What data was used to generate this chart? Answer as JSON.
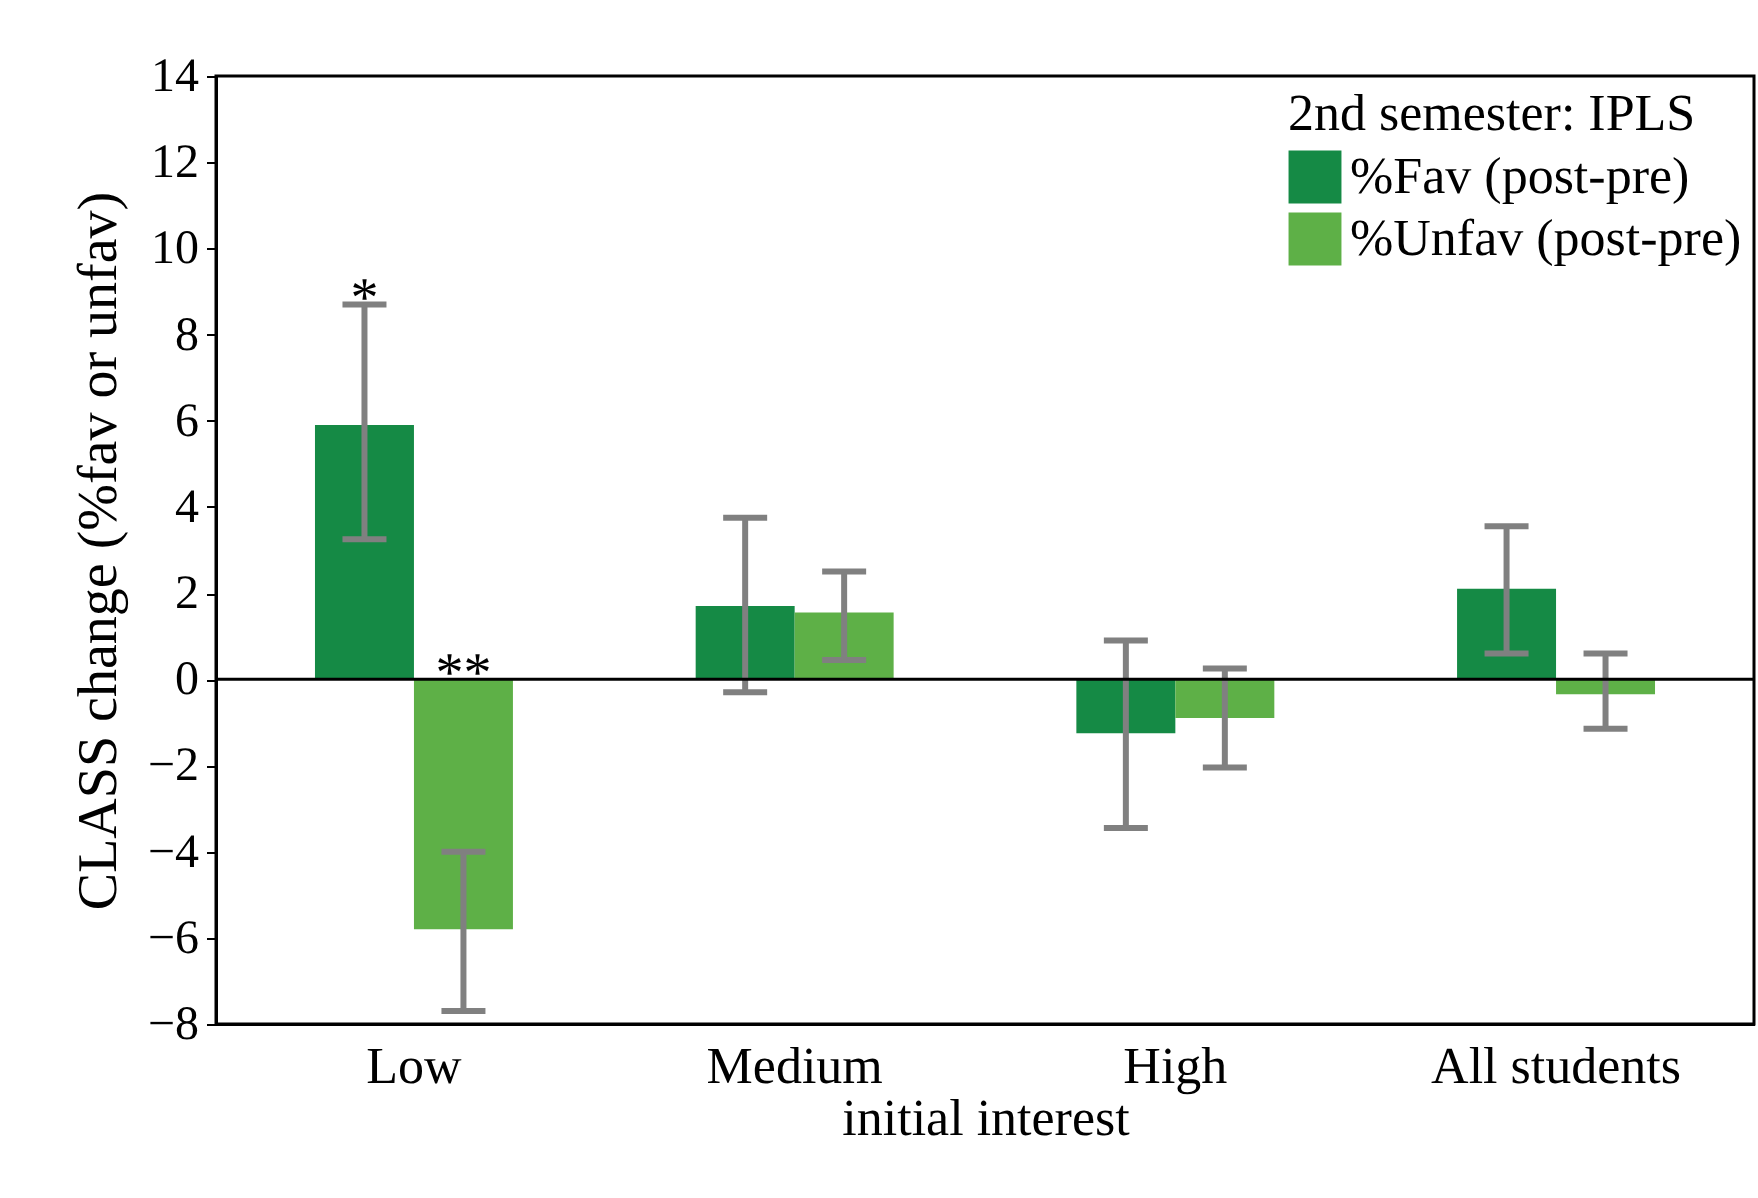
{
  "chart_data": {
    "type": "bar",
    "ylabel": "CLASS change (%fav or unfav)",
    "xlabel": "initial interest",
    "legend_title": "2nd semester: IPLS",
    "categories": [
      "Low",
      "Medium",
      "High",
      "All students"
    ],
    "series": [
      {
        "name": "%Fav (post-pre)",
        "color": "#158a45",
        "values": [
          5.9,
          1.7,
          -1.25,
          2.1
        ],
        "errors": [
          [
            3.25,
            8.7
          ],
          [
            -0.3,
            3.75
          ],
          [
            -3.45,
            0.9
          ],
          [
            0.6,
            3.55
          ]
        ]
      },
      {
        "name": "%Unfav (post-pre)",
        "color": "#5eb047",
        "values": [
          -5.8,
          1.55,
          -0.9,
          -0.35
        ],
        "errors": [
          [
            -7.7,
            -4.0
          ],
          [
            0.45,
            2.5
          ],
          [
            -2.05,
            0.25
          ],
          [
            -1.15,
            0.6
          ]
        ]
      }
    ],
    "ylim": [
      -8,
      14
    ],
    "yticks": [
      -8,
      -6,
      -4,
      -2,
      0,
      2,
      4,
      6,
      8,
      10,
      12,
      14
    ],
    "grid": false,
    "legend": "top right",
    "ref_lines": [
      {
        "axis": "y",
        "value": 0
      }
    ],
    "annotations": [
      "*",
      "**"
    ]
  }
}
